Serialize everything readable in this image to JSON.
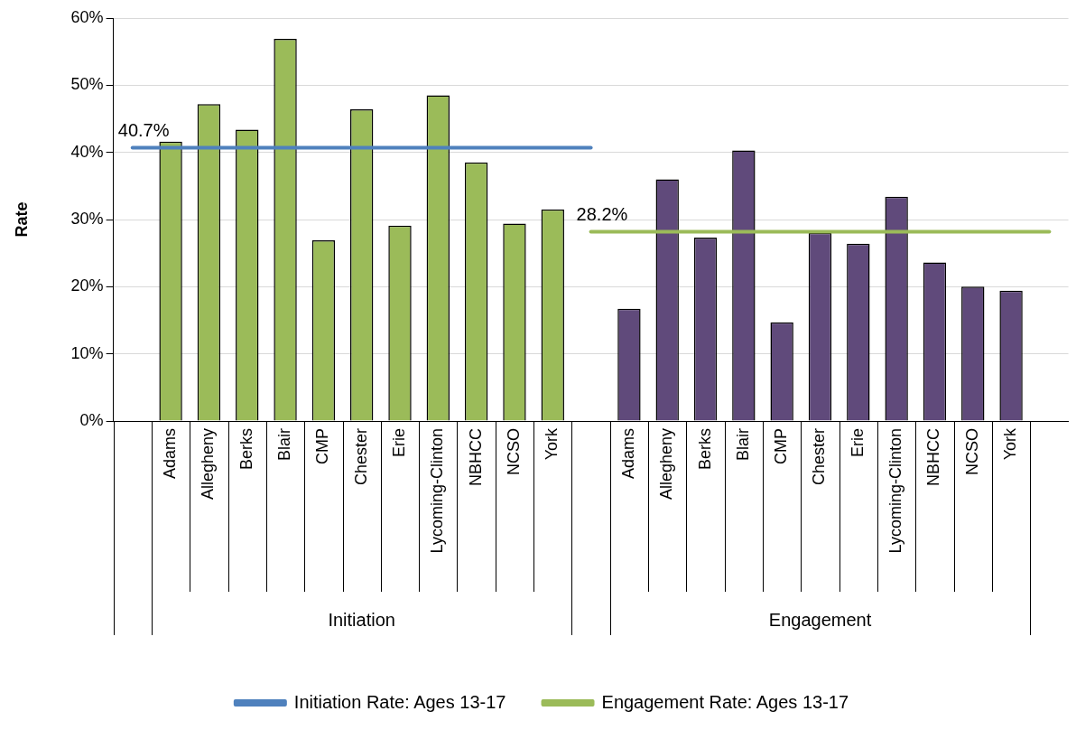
{
  "chart_data": {
    "type": "bar",
    "ylabel": "Rate",
    "ylim": [
      0,
      60
    ],
    "yticks": [
      {
        "value": 0,
        "label": "0%"
      },
      {
        "value": 10,
        "label": "10%"
      },
      {
        "value": 20,
        "label": "20%"
      },
      {
        "value": 30,
        "label": "30%"
      },
      {
        "value": 40,
        "label": "40%"
      },
      {
        "value": 50,
        "label": "50%"
      },
      {
        "value": 60,
        "label": "60%"
      }
    ],
    "grid": "y",
    "legend": "bottom",
    "categories": [
      null,
      "Adams",
      "Allegheny",
      "Berks",
      "Blair",
      "CMP",
      "Chester",
      "Erie",
      "Lycoming-Clinton",
      "NBHCC",
      "NCSO",
      "York",
      null,
      "Adams",
      "Allegheny",
      "Berks",
      "Blair",
      "CMP",
      "Chester",
      "Erie",
      "Lycoming-Clinton",
      "NBHCC",
      "NCSO",
      "York",
      null
    ],
    "annotations": [
      "Initiation",
      "Engagement"
    ],
    "series": [
      {
        "color": "#9bbb59",
        "values": [
          null,
          41.6,
          47.2,
          43.4,
          56.9,
          26.9,
          46.4,
          29.1,
          48.5,
          38.5,
          29.4,
          31.5,
          null,
          null,
          null,
          null,
          null,
          null,
          null,
          null,
          null,
          null,
          null,
          null,
          null
        ]
      },
      {
        "color": "#604a7b",
        "values": [
          null,
          null,
          null,
          null,
          null,
          null,
          null,
          null,
          null,
          null,
          null,
          null,
          null,
          16.7,
          36.0,
          27.3,
          40.3,
          14.7,
          28.0,
          26.4,
          33.4,
          23.6,
          20.0,
          19.4,
          null
        ]
      },
      {
        "type": "line",
        "name": "Initiation Rate: Ages 13-17",
        "color": "#4f81bd",
        "values": [
          40.7,
          40.7,
          40.7,
          40.7,
          40.7,
          40.7,
          40.7,
          40.7,
          40.7,
          40.7,
          40.7,
          40.7,
          40.7,
          null,
          null,
          null,
          null,
          null,
          null,
          null,
          null,
          null,
          null,
          null,
          null
        ],
        "value_labels": [
          "40.7%",
          null,
          null,
          null,
          null,
          null,
          null,
          null,
          null,
          null,
          null,
          null,
          null,
          null,
          null,
          null,
          null,
          null,
          null,
          null,
          null,
          null,
          null,
          null,
          null
        ]
      },
      {
        "type": "line",
        "name": "Engagement Rate: Ages 13-17",
        "color": "#9bbb59",
        "values": [
          null,
          null,
          null,
          null,
          null,
          null,
          null,
          null,
          null,
          null,
          null,
          null,
          28.2,
          28.2,
          28.2,
          28.2,
          28.2,
          28.2,
          28.2,
          28.2,
          28.2,
          28.2,
          28.2,
          28.2,
          28.2
        ],
        "value_labels": [
          null,
          null,
          null,
          null,
          null,
          null,
          null,
          null,
          null,
          null,
          null,
          null,
          "28.2%",
          null,
          null,
          null,
          null,
          null,
          null,
          null,
          null,
          null,
          null,
          null,
          null
        ]
      }
    ]
  }
}
